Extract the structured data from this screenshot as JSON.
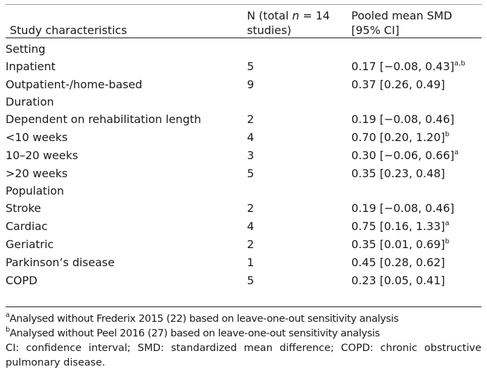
{
  "header": {
    "col_characteristic": "Study characteristics",
    "col_n_line1_prefix": "N (total ",
    "col_n_line1_var": "n",
    "col_n_line1_suffix": " = 14",
    "col_n_line2": "studies)",
    "col_smd_line1": "Pooled mean SMD",
    "col_smd_line2": "[95% CI]"
  },
  "groups": [
    {
      "label": "Setting",
      "rows": [
        {
          "label": "Inpatient",
          "n": "5",
          "smd": "0.17 [−0.08, 0.43]",
          "note": "a,b"
        },
        {
          "label": "Outpatient-/home-based",
          "n": "9",
          "smd": "0.37 [0.26, 0.49]",
          "note": ""
        }
      ]
    },
    {
      "label": "Duration",
      "rows": [
        {
          "label": "Dependent on rehabilitation length",
          "n": "2",
          "smd": "0.19 [−0.08, 0.46]",
          "note": ""
        },
        {
          "label": "<10 weeks",
          "n": "4",
          "smd": "0.70 [0.20, 1.20]",
          "note": "b"
        },
        {
          "label": "10–20 weeks",
          "n": "3",
          "smd": "0.30 [−0.06, 0.66]",
          "note": "a"
        },
        {
          "label": ">20 weeks",
          "n": "5",
          "smd": "0.35 [0.23, 0.48]",
          "note": ""
        }
      ]
    },
    {
      "label": "Population",
      "rows": [
        {
          "label": "Stroke",
          "n": "2",
          "smd": "0.19 [−0.08, 0.46]",
          "note": ""
        },
        {
          "label": "Cardiac",
          "n": "4",
          "smd": "0.75 [0.16, 1.33]",
          "note": "a"
        },
        {
          "label": "Geriatric",
          "n": "2",
          "smd": "0.35 [0.01, 0.69]",
          "note": "b"
        },
        {
          "label": "Parkinson’s disease",
          "n": "1",
          "smd": "0.45 [0.28, 0.62]",
          "note": ""
        },
        {
          "label": "COPD",
          "n": "5",
          "smd": "0.23 [0.05, 0.41]",
          "note": ""
        }
      ]
    }
  ],
  "footnotes": {
    "a_mark": "a",
    "a_text": "Analysed without Frederix 2015 (22) based on leave-one-out sensitivity analysis",
    "b_mark": "b",
    "b_text": "Analysed without Peel 2016 (27) based on leave-one-out sensitivity analysis",
    "abbrev": "CI: confidence interval; SMD: standardized mean difference; COPD: chronic obstructive pulmonary disease."
  }
}
